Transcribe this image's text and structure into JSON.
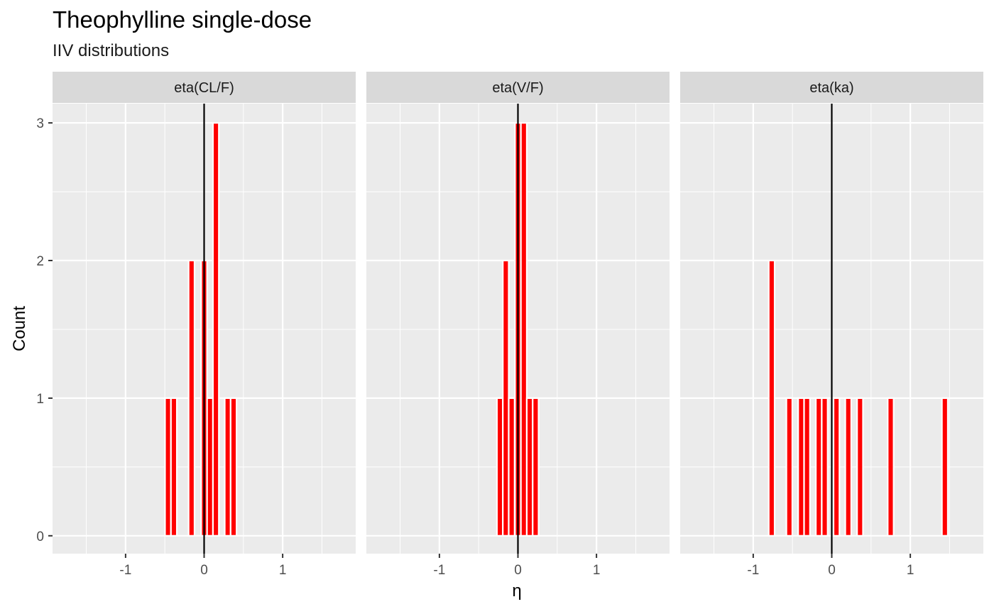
{
  "chart_data": {
    "type": "bar",
    "title": "Theophylline single-dose",
    "subtitle": "IIV distributions",
    "xlabel": "η",
    "ylabel": "Count",
    "xlim": [
      -1.93,
      1.93
    ],
    "ylim": [
      -0.13,
      3.14
    ],
    "x_ticks": [
      -1,
      0,
      1
    ],
    "x_tick_labels": [
      "-1",
      "0",
      "1"
    ],
    "y_ticks": [
      0,
      1,
      2,
      3
    ],
    "y_tick_labels": [
      "0",
      "1",
      "2",
      "3"
    ],
    "bin_width": 0.075,
    "reference_line_x": 0,
    "colors": {
      "bar_fill": "#ff0000",
      "bar_outline": "#ffffff",
      "panel_background": "#ebebeb",
      "grid": "#ffffff",
      "strip_background": "#d9d9d9",
      "reference_line": "#000000"
    },
    "grid": true,
    "panels": [
      {
        "label": "eta(CL/F)",
        "bins": [
          {
            "x": -0.46,
            "count": 1
          },
          {
            "x": -0.385,
            "count": 1
          },
          {
            "x": -0.16,
            "count": 2
          },
          {
            "x": 0.0,
            "count": 2
          },
          {
            "x": 0.075,
            "count": 1
          },
          {
            "x": 0.15,
            "count": 3
          },
          {
            "x": 0.3,
            "count": 1
          },
          {
            "x": 0.375,
            "count": 1
          }
        ]
      },
      {
        "label": "eta(V/F)",
        "bins": [
          {
            "x": -0.23,
            "count": 1
          },
          {
            "x": -0.155,
            "count": 2
          },
          {
            "x": -0.08,
            "count": 1
          },
          {
            "x": 0.0,
            "count": 3
          },
          {
            "x": 0.075,
            "count": 3
          },
          {
            "x": 0.15,
            "count": 1
          },
          {
            "x": 0.225,
            "count": 1
          }
        ]
      },
      {
        "label": "eta(ka)",
        "bins": [
          {
            "x": -0.765,
            "count": 2
          },
          {
            "x": -0.54,
            "count": 1
          },
          {
            "x": -0.39,
            "count": 1
          },
          {
            "x": -0.315,
            "count": 1
          },
          {
            "x": -0.165,
            "count": 1
          },
          {
            "x": -0.09,
            "count": 1
          },
          {
            "x": 0.06,
            "count": 1
          },
          {
            "x": 0.21,
            "count": 1
          },
          {
            "x": 0.36,
            "count": 1
          },
          {
            "x": 0.75,
            "count": 1
          },
          {
            "x": 1.44,
            "count": 1
          }
        ]
      }
    ]
  }
}
